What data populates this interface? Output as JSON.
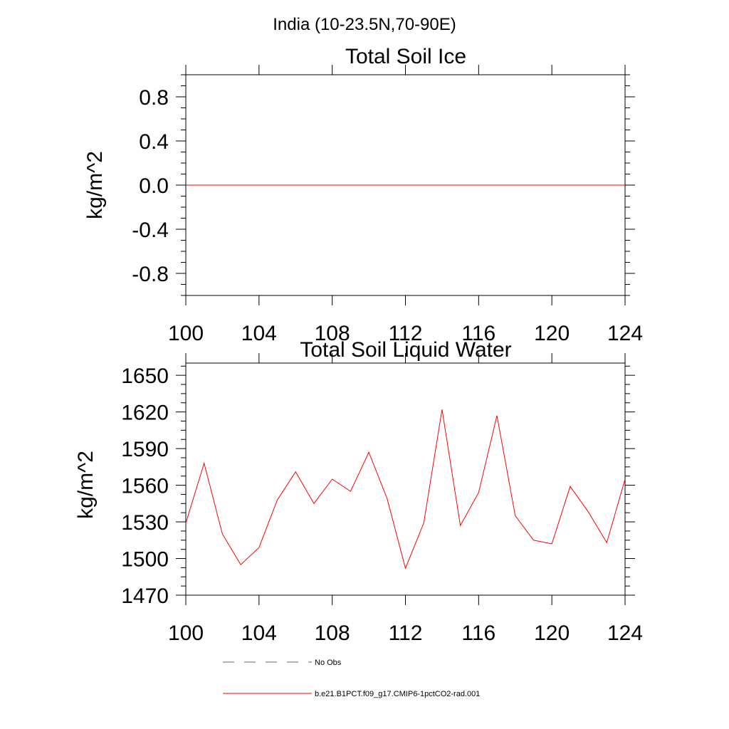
{
  "figure": {
    "title": "India (10-23.5N,70-90E)",
    "legend": [
      {
        "label": "No Obs",
        "style": "dashed",
        "color": "#666666"
      },
      {
        "label": "b.e21.B1PCT.f09_g17.CMIP6-1pctCO2-rad.001",
        "style": "solid",
        "color": "#ff0000"
      }
    ]
  },
  "chart_data": [
    {
      "type": "line",
      "title": "Total Soil Ice",
      "xlabel": "",
      "ylabel": "kg/m^2",
      "xlim": [
        100,
        124
      ],
      "ylim": [
        -1.0,
        1.0
      ],
      "xticks": [
        100,
        104,
        108,
        112,
        116,
        120,
        124
      ],
      "yticks": [
        -0.8,
        -0.4,
        0.0,
        0.4,
        0.8
      ],
      "ytick_labels": [
        "-0.8",
        "-0.4",
        "0.0",
        "0.4",
        "0.8"
      ],
      "grid": false,
      "series": [
        {
          "name": "b.e21.B1PCT.f09_g17.CMIP6-1pctCO2-rad.001",
          "color": "#ff0000",
          "x": [
            100,
            101,
            102,
            103,
            104,
            105,
            106,
            107,
            108,
            109,
            110,
            111,
            112,
            113,
            114,
            115,
            116,
            117,
            118,
            119,
            120,
            121,
            122,
            123,
            124
          ],
          "y": [
            0,
            0,
            0,
            0,
            0,
            0,
            0,
            0,
            0,
            0,
            0,
            0,
            0,
            0,
            0,
            0,
            0,
            0,
            0,
            0,
            0,
            0,
            0,
            0,
            0
          ]
        }
      ]
    },
    {
      "type": "line",
      "title": "Total Soil Liquid Water",
      "xlabel": "",
      "ylabel": "kg/m^2",
      "xlim": [
        100,
        124
      ],
      "ylim": [
        1470,
        1660
      ],
      "xticks": [
        100,
        104,
        108,
        112,
        116,
        120,
        124
      ],
      "yticks": [
        1470,
        1500,
        1530,
        1560,
        1590,
        1620,
        1650
      ],
      "ytick_labels": [
        "1470",
        "1500",
        "1530",
        "1560",
        "1590",
        "1620",
        "1650"
      ],
      "grid": false,
      "series": [
        {
          "name": "b.e21.B1PCT.f09_g17.CMIP6-1pctCO2-rad.001",
          "color": "#ff0000",
          "x": [
            100,
            101,
            102,
            103,
            104,
            105,
            106,
            107,
            108,
            109,
            110,
            111,
            112,
            113,
            114,
            115,
            116,
            117,
            118,
            119,
            120,
            121,
            122,
            123,
            124
          ],
          "y": [
            1529,
            1578,
            1520,
            1495,
            1509,
            1548,
            1571,
            1545,
            1565,
            1555,
            1587,
            1549,
            1492,
            1529,
            1622,
            1527,
            1554,
            1617,
            1535,
            1515,
            1512,
            1559,
            1538,
            1513,
            1565
          ]
        }
      ]
    }
  ]
}
